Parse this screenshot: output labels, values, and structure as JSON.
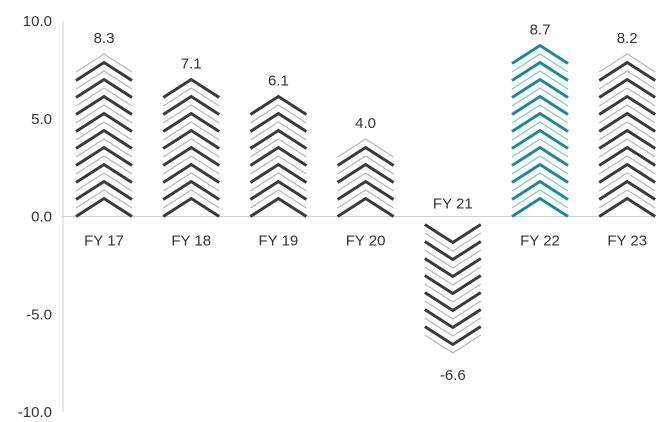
{
  "chart_data": {
    "type": "bar",
    "categories": [
      "FY 17",
      "FY 18",
      "FY 19",
      "FY 20",
      "FY 21",
      "FY 22",
      "FY 23"
    ],
    "values": [
      8.3,
      7.1,
      6.1,
      4.0,
      -6.6,
      8.7,
      8.2
    ],
    "data_labels": [
      "8.3",
      "7.1",
      "6.1",
      "4.0",
      "-6.6",
      "8.7",
      "8.2"
    ],
    "y_ticks": [
      "10.0",
      "5.0",
      "0.0",
      "-5.0",
      "-10.0"
    ],
    "ylim": [
      -10,
      10
    ],
    "highlight_category": "FY 22",
    "colors": {
      "primary_dark": "#3a3a3a",
      "primary_light": "#b8b8b8",
      "highlight_dark": "#1b8a96",
      "highlight_light": "#86c5cc",
      "axis": "#d0d0d0",
      "text": "#333333"
    },
    "grid": false,
    "legend": "none"
  }
}
